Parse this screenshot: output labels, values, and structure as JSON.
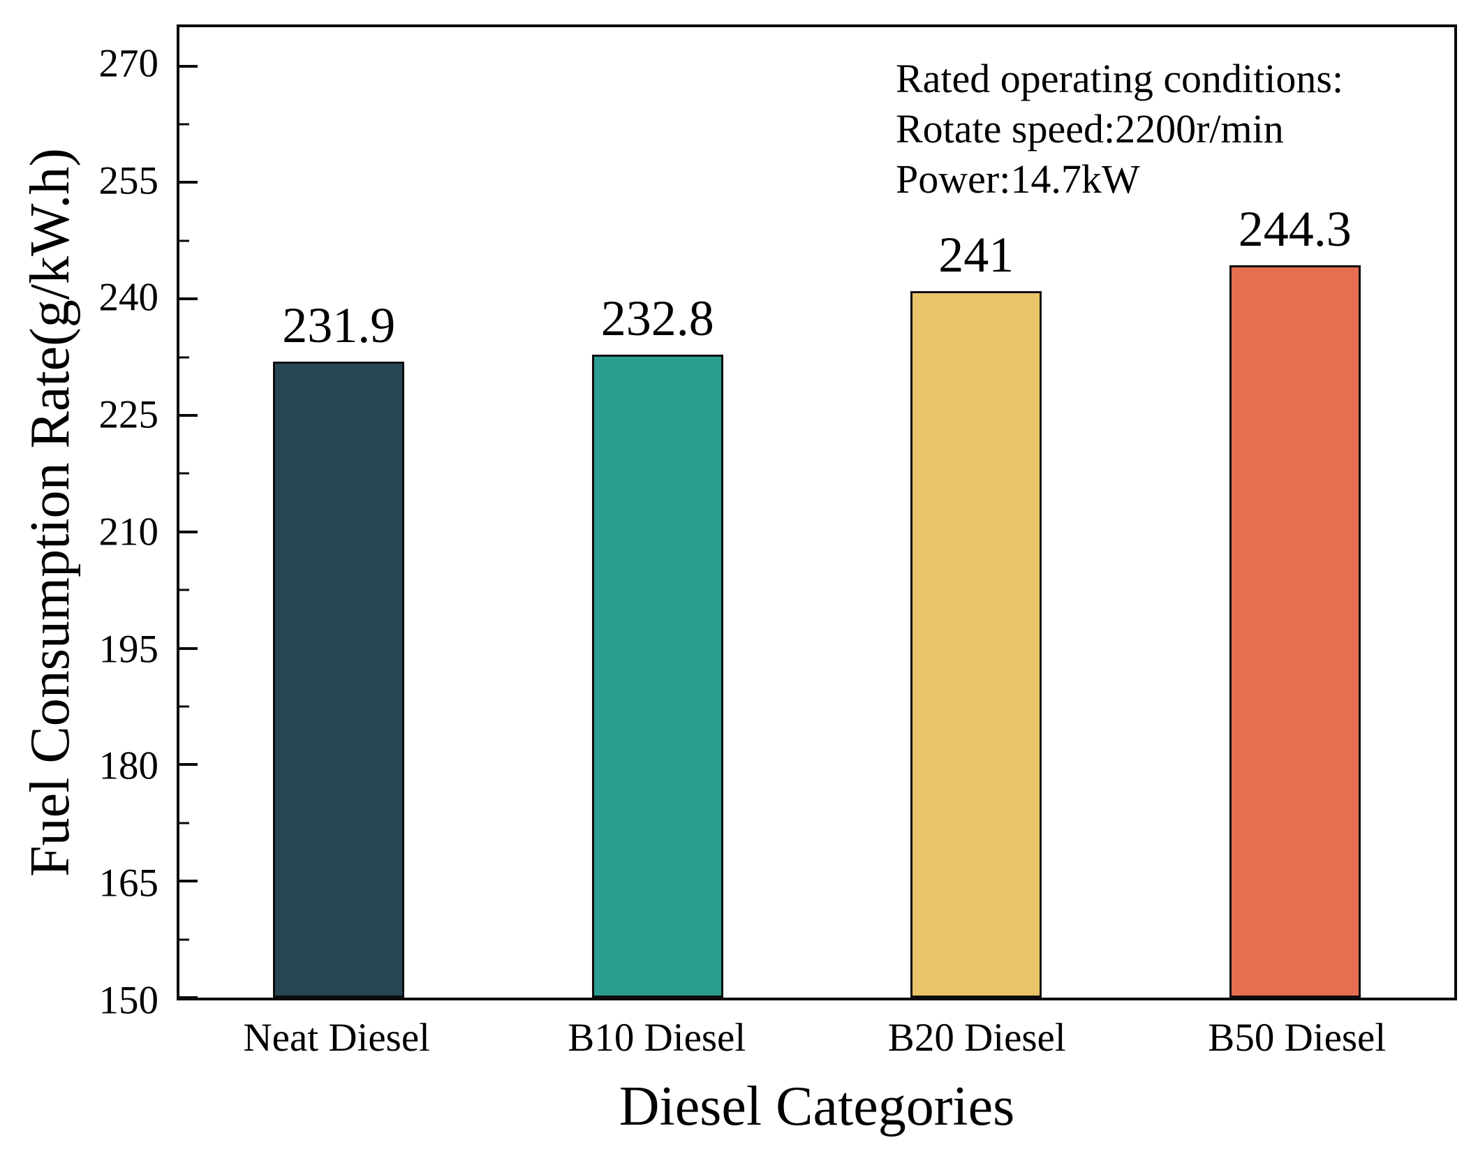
{
  "chart_data": {
    "type": "bar",
    "title": "",
    "xlabel": "Diesel Categories",
    "ylabel": "Fuel Consumption Rate(g/kW.h)",
    "categories": [
      "Neat Diesel",
      "B10 Diesel",
      "B20 Diesel",
      "B50 Diesel"
    ],
    "values": [
      231.9,
      232.8,
      241,
      244.3
    ],
    "value_labels": [
      "231.9",
      "232.8",
      "241",
      "244.3"
    ],
    "bar_colors": [
      "#264653",
      "#2a9d8f",
      "#e9c46a",
      "#e76f51"
    ],
    "bar_edge_color": "#0d0d0d",
    "frame_color": "#0a0a0a",
    "background_color": "#ffffff",
    "ylim": [
      150,
      275
    ],
    "y_major_ticks": [
      150,
      165,
      180,
      195,
      210,
      225,
      240,
      255,
      270
    ],
    "y_minor_ticks": [
      157.5,
      172.5,
      187.5,
      202.5,
      217.5,
      232.5,
      247.5,
      262.5
    ],
    "grid": "off",
    "legend": "none",
    "tick_direction": "in",
    "annotation": {
      "lines": [
        "Rated operating conditions:",
        "Rotate speed:2200r/min",
        "Power:14.7kW"
      ]
    }
  }
}
